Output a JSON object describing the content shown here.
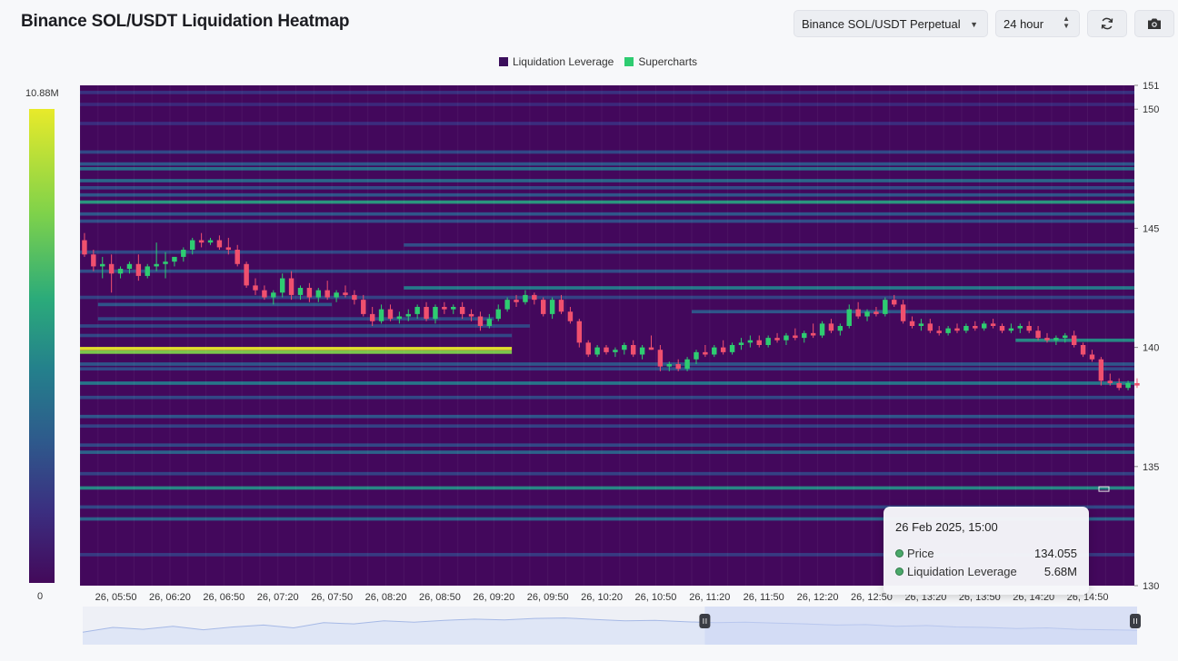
{
  "header": {
    "title": "Binance SOL/USDT Liquidation Heatmap",
    "market_select": "Binance SOL/USDT Perpetual",
    "range_select": "24 hour",
    "refresh_icon": "refresh-icon",
    "camera_icon": "camera-icon"
  },
  "colorbar": {
    "max_label": "10.88M",
    "min_label": "0"
  },
  "tooltip": {
    "date": "26 Feb 2025, 15:00",
    "price_label": "Price",
    "price_value": "134.055",
    "lev_label": "Liquidation Leverage",
    "lev_value": "5.68M"
  },
  "chart_data": {
    "type": "heatmap",
    "title": "Binance SOL/USDT Liquidation Heatmap",
    "legend": [
      "Liquidation Leverage",
      "Supercharts"
    ],
    "legend_colors": [
      "#3b0f5c",
      "#2ecc71"
    ],
    "background_color": "#43085c",
    "candle_up_color": "#2ecc71",
    "candle_down_color": "#f0506e",
    "ylim": [
      130,
      151
    ],
    "y_ticks": [
      130,
      135,
      140,
      145,
      150,
      151
    ],
    "x_ticks": [
      "26, 05:50",
      "26, 06:20",
      "26, 06:50",
      "26, 07:20",
      "26, 07:50",
      "26, 08:20",
      "26, 08:50",
      "26, 09:20",
      "26, 09:50",
      "26, 10:20",
      "26, 10:50",
      "26, 11:20",
      "26, 11:50",
      "26, 12:20",
      "26, 12:50",
      "26, 13:20",
      "26, 13:50",
      "26, 14:20",
      "26, 14:50"
    ],
    "time_start_minutes": 330,
    "time_end_minutes": 916,
    "colorbar_range": [
      0,
      10.88
    ],
    "liquidation_bands": [
      {
        "price": 150.7,
        "t0": 330,
        "t1": 916,
        "level": 0.22
      },
      {
        "price": 150.2,
        "t0": 330,
        "t1": 916,
        "level": 0.18
      },
      {
        "price": 149.4,
        "t0": 330,
        "t1": 916,
        "level": 0.2
      },
      {
        "price": 148.2,
        "t0": 330,
        "t1": 916,
        "level": 0.3
      },
      {
        "price": 147.7,
        "t0": 330,
        "t1": 916,
        "level": 0.35
      },
      {
        "price": 147.5,
        "t0": 330,
        "t1": 916,
        "level": 0.45
      },
      {
        "price": 147.0,
        "t0": 330,
        "t1": 916,
        "level": 0.42
      },
      {
        "price": 146.7,
        "t0": 330,
        "t1": 916,
        "level": 0.32
      },
      {
        "price": 146.4,
        "t0": 330,
        "t1": 916,
        "level": 0.35
      },
      {
        "price": 146.1,
        "t0": 330,
        "t1": 916,
        "level": 0.6
      },
      {
        "price": 145.6,
        "t0": 330,
        "t1": 916,
        "level": 0.35
      },
      {
        "price": 145.3,
        "t0": 330,
        "t1": 916,
        "level": 0.32
      },
      {
        "price": 144.3,
        "t0": 510,
        "t1": 916,
        "level": 0.32
      },
      {
        "price": 144.0,
        "t0": 330,
        "t1": 916,
        "level": 0.3
      },
      {
        "price": 143.2,
        "t0": 330,
        "t1": 916,
        "level": 0.32
      },
      {
        "price": 142.5,
        "t0": 510,
        "t1": 916,
        "level": 0.5
      },
      {
        "price": 142.1,
        "t0": 330,
        "t1": 916,
        "level": 0.28
      },
      {
        "price": 141.8,
        "t0": 340,
        "t1": 470,
        "level": 0.35
      },
      {
        "price": 141.5,
        "t0": 670,
        "t1": 916,
        "level": 0.35
      },
      {
        "price": 141.2,
        "t0": 340,
        "t1": 560,
        "level": 0.3
      },
      {
        "price": 140.9,
        "t0": 330,
        "t1": 580,
        "level": 0.3
      },
      {
        "price": 140.5,
        "t0": 330,
        "t1": 570,
        "level": 0.3
      },
      {
        "price": 140.3,
        "t0": 850,
        "t1": 916,
        "level": 0.55
      },
      {
        "price": 139.95,
        "t0": 330,
        "t1": 570,
        "level": 1.0
      },
      {
        "price": 139.8,
        "t0": 330,
        "t1": 570,
        "level": 0.8
      },
      {
        "price": 139.3,
        "t0": 330,
        "t1": 916,
        "level": 0.35
      },
      {
        "price": 139.1,
        "t0": 330,
        "t1": 916,
        "level": 0.3
      },
      {
        "price": 138.5,
        "t0": 330,
        "t1": 916,
        "level": 0.48
      },
      {
        "price": 137.9,
        "t0": 330,
        "t1": 916,
        "level": 0.3
      },
      {
        "price": 137.1,
        "t0": 330,
        "t1": 916,
        "level": 0.35
      },
      {
        "price": 136.7,
        "t0": 330,
        "t1": 916,
        "level": 0.28
      },
      {
        "price": 135.9,
        "t0": 330,
        "t1": 916,
        "level": 0.3
      },
      {
        "price": 135.6,
        "t0": 330,
        "t1": 916,
        "level": 0.4
      },
      {
        "price": 134.7,
        "t0": 330,
        "t1": 916,
        "level": 0.28
      },
      {
        "price": 134.1,
        "t0": 330,
        "t1": 916,
        "level": 0.55
      },
      {
        "price": 133.3,
        "t0": 330,
        "t1": 916,
        "level": 0.3
      },
      {
        "price": 132.8,
        "t0": 330,
        "t1": 916,
        "level": 0.4
      },
      {
        "price": 131.3,
        "t0": 330,
        "t1": 916,
        "level": 0.25
      }
    ],
    "candles": [
      [
        330,
        144.5,
        144.8,
        143.8,
        143.9
      ],
      [
        335,
        143.9,
        144.1,
        143.2,
        143.4
      ],
      [
        340,
        143.4,
        143.8,
        142.9,
        143.5
      ],
      [
        345,
        143.5,
        143.9,
        142.3,
        143.1
      ],
      [
        350,
        143.1,
        143.4,
        142.9,
        143.3
      ],
      [
        355,
        143.3,
        143.6,
        143.1,
        143.5
      ],
      [
        360,
        143.5,
        143.9,
        142.8,
        143.0
      ],
      [
        365,
        143.0,
        143.5,
        142.9,
        143.4
      ],
      [
        370,
        143.4,
        144.4,
        143.2,
        143.5
      ],
      [
        375,
        143.5,
        144.0,
        142.9,
        143.6
      ],
      [
        380,
        143.6,
        143.8,
        143.4,
        143.8
      ],
      [
        385,
        143.8,
        144.2,
        143.6,
        144.1
      ],
      [
        390,
        144.1,
        144.6,
        143.9,
        144.5
      ],
      [
        395,
        144.5,
        144.8,
        144.2,
        144.4
      ],
      [
        400,
        144.4,
        144.6,
        144.3,
        144.5
      ],
      [
        405,
        144.5,
        144.7,
        144.1,
        144.2
      ],
      [
        410,
        144.2,
        144.6,
        143.9,
        144.1
      ],
      [
        415,
        144.1,
        144.3,
        143.4,
        143.5
      ],
      [
        420,
        143.5,
        143.6,
        142.5,
        142.6
      ],
      [
        425,
        142.6,
        142.9,
        142.2,
        142.4
      ],
      [
        430,
        142.4,
        142.6,
        142.0,
        142.1
      ],
      [
        435,
        142.1,
        142.4,
        141.8,
        142.3
      ],
      [
        440,
        142.3,
        143.1,
        142.1,
        142.9
      ],
      [
        445,
        142.9,
        143.2,
        142.0,
        142.2
      ],
      [
        450,
        142.2,
        142.6,
        142.0,
        142.5
      ],
      [
        455,
        142.5,
        142.7,
        141.9,
        142.1
      ],
      [
        460,
        142.1,
        142.5,
        141.9,
        142.4
      ],
      [
        465,
        142.4,
        142.8,
        142.0,
        142.1
      ],
      [
        470,
        142.1,
        142.4,
        141.9,
        142.3
      ],
      [
        475,
        142.3,
        142.6,
        142.1,
        142.2
      ],
      [
        480,
        142.2,
        142.4,
        141.8,
        142.0
      ],
      [
        485,
        142.0,
        142.2,
        141.3,
        141.4
      ],
      [
        490,
        141.4,
        141.7,
        140.9,
        141.1
      ],
      [
        495,
        141.1,
        141.8,
        141.0,
        141.6
      ],
      [
        500,
        141.6,
        141.8,
        141.1,
        141.2
      ],
      [
        505,
        141.2,
        141.5,
        141.0,
        141.3
      ],
      [
        510,
        141.3,
        141.6,
        141.1,
        141.4
      ],
      [
        515,
        141.4,
        141.8,
        141.2,
        141.7
      ],
      [
        520,
        141.7,
        141.9,
        141.1,
        141.2
      ],
      [
        525,
        141.2,
        141.8,
        141.0,
        141.7
      ],
      [
        530,
        141.7,
        141.9,
        141.4,
        141.6
      ],
      [
        535,
        141.6,
        141.8,
        141.4,
        141.7
      ],
      [
        540,
        141.7,
        141.9,
        141.2,
        141.4
      ],
      [
        545,
        141.4,
        141.6,
        141.1,
        141.3
      ],
      [
        550,
        141.3,
        141.5,
        140.7,
        140.9
      ],
      [
        555,
        140.9,
        141.4,
        140.8,
        141.2
      ],
      [
        560,
        141.2,
        141.8,
        141.1,
        141.6
      ],
      [
        565,
        141.6,
        142.1,
        141.5,
        142.0
      ],
      [
        570,
        142.0,
        142.2,
        141.7,
        141.9
      ],
      [
        575,
        141.9,
        142.4,
        141.8,
        142.2
      ],
      [
        580,
        142.2,
        142.3,
        141.8,
        142.0
      ],
      [
        585,
        142.0,
        142.1,
        141.3,
        141.4
      ],
      [
        590,
        141.4,
        142.1,
        141.2,
        142.0
      ],
      [
        595,
        142.0,
        142.2,
        141.4,
        141.5
      ],
      [
        600,
        141.5,
        141.7,
        141.0,
        141.1
      ],
      [
        605,
        141.1,
        141.2,
        140.0,
        140.2
      ],
      [
        610,
        140.2,
        140.3,
        139.6,
        139.7
      ],
      [
        615,
        139.7,
        140.1,
        139.6,
        140.0
      ],
      [
        620,
        140.0,
        140.1,
        139.7,
        139.8
      ],
      [
        625,
        139.8,
        140.0,
        139.6,
        139.9
      ],
      [
        630,
        139.9,
        140.2,
        139.7,
        140.1
      ],
      [
        635,
        140.1,
        140.3,
        139.6,
        139.7
      ],
      [
        640,
        139.7,
        140.1,
        139.5,
        140.0
      ],
      [
        645,
        140.0,
        140.5,
        139.9,
        139.9
      ],
      [
        650,
        139.9,
        140.1,
        139.0,
        139.2
      ],
      [
        655,
        139.2,
        139.4,
        139.0,
        139.3
      ],
      [
        660,
        139.3,
        139.5,
        139.0,
        139.1
      ],
      [
        665,
        139.1,
        139.6,
        139.0,
        139.5
      ],
      [
        670,
        139.5,
        139.9,
        139.3,
        139.8
      ],
      [
        675,
        139.8,
        140.1,
        139.6,
        139.7
      ],
      [
        680,
        139.7,
        140.1,
        139.6,
        140.0
      ],
      [
        685,
        140.0,
        140.3,
        139.7,
        139.8
      ],
      [
        690,
        139.8,
        140.2,
        139.7,
        140.1
      ],
      [
        695,
        140.1,
        140.4,
        139.9,
        140.2
      ],
      [
        700,
        140.2,
        140.5,
        140.0,
        140.3
      ],
      [
        705,
        140.3,
        140.5,
        140.0,
        140.1
      ],
      [
        710,
        140.1,
        140.5,
        140.0,
        140.4
      ],
      [
        715,
        140.4,
        140.6,
        140.2,
        140.3
      ],
      [
        720,
        140.3,
        140.6,
        140.1,
        140.5
      ],
      [
        725,
        140.5,
        140.8,
        140.3,
        140.4
      ],
      [
        730,
        140.4,
        140.7,
        140.2,
        140.6
      ],
      [
        735,
        140.6,
        141.0,
        140.4,
        140.5
      ],
      [
        740,
        140.5,
        141.1,
        140.4,
        141.0
      ],
      [
        745,
        141.0,
        141.2,
        140.6,
        140.7
      ],
      [
        750,
        140.7,
        141.0,
        140.5,
        140.9
      ],
      [
        755,
        140.9,
        141.8,
        140.8,
        141.6
      ],
      [
        760,
        141.6,
        141.9,
        141.2,
        141.3
      ],
      [
        765,
        141.3,
        141.6,
        141.1,
        141.5
      ],
      [
        770,
        141.5,
        141.7,
        141.3,
        141.4
      ],
      [
        775,
        141.4,
        142.1,
        141.3,
        142.0
      ],
      [
        780,
        142.0,
        142.2,
        141.7,
        141.8
      ],
      [
        785,
        141.8,
        142.0,
        141.0,
        141.1
      ],
      [
        790,
        141.1,
        141.3,
        140.8,
        140.9
      ],
      [
        795,
        140.9,
        141.2,
        140.7,
        141.0
      ],
      [
        800,
        141.0,
        141.2,
        140.6,
        140.7
      ],
      [
        805,
        140.7,
        140.9,
        140.5,
        140.6
      ],
      [
        810,
        140.6,
        140.9,
        140.5,
        140.8
      ],
      [
        815,
        140.8,
        141.0,
        140.6,
        140.7
      ],
      [
        820,
        140.7,
        141.0,
        140.6,
        140.9
      ],
      [
        825,
        140.9,
        141.1,
        140.7,
        140.8
      ],
      [
        830,
        140.8,
        141.1,
        140.7,
        141.0
      ],
      [
        835,
        141.0,
        141.2,
        140.8,
        140.9
      ],
      [
        840,
        140.9,
        141.0,
        140.6,
        140.7
      ],
      [
        845,
        140.7,
        141.0,
        140.6,
        140.8
      ],
      [
        850,
        140.8,
        141.0,
        140.6,
        140.9
      ],
      [
        855,
        140.9,
        141.1,
        140.6,
        140.7
      ],
      [
        860,
        140.7,
        140.9,
        140.3,
        140.4
      ],
      [
        865,
        140.4,
        140.6,
        140.2,
        140.3
      ],
      [
        870,
        140.3,
        140.5,
        140.1,
        140.4
      ],
      [
        875,
        140.4,
        140.6,
        140.2,
        140.5
      ],
      [
        880,
        140.5,
        140.7,
        140.0,
        140.1
      ],
      [
        885,
        140.1,
        140.2,
        139.6,
        139.7
      ],
      [
        890,
        139.7,
        139.9,
        139.4,
        139.5
      ],
      [
        895,
        139.5,
        139.6,
        138.4,
        138.6
      ],
      [
        900,
        138.6,
        138.9,
        138.4,
        138.5
      ],
      [
        905,
        138.5,
        138.7,
        138.2,
        138.3
      ],
      [
        910,
        138.3,
        138.6,
        138.2,
        138.5
      ],
      [
        915,
        138.5,
        138.7,
        138.3,
        138.4
      ]
    ],
    "navigator_series": [
      0.3,
      0.5,
      0.42,
      0.55,
      0.4,
      0.52,
      0.6,
      0.48,
      0.7,
      0.65,
      0.78,
      0.72,
      0.8,
      0.85,
      0.82,
      0.88,
      0.9,
      0.84,
      0.78,
      0.8,
      0.74,
      0.7,
      0.72,
      0.68,
      0.65,
      0.6,
      0.62,
      0.55,
      0.58,
      0.52,
      0.5,
      0.45,
      0.48,
      0.42,
      0.4,
      0.38
    ],
    "navigator_window": [
      0.59,
      1.0
    ]
  }
}
